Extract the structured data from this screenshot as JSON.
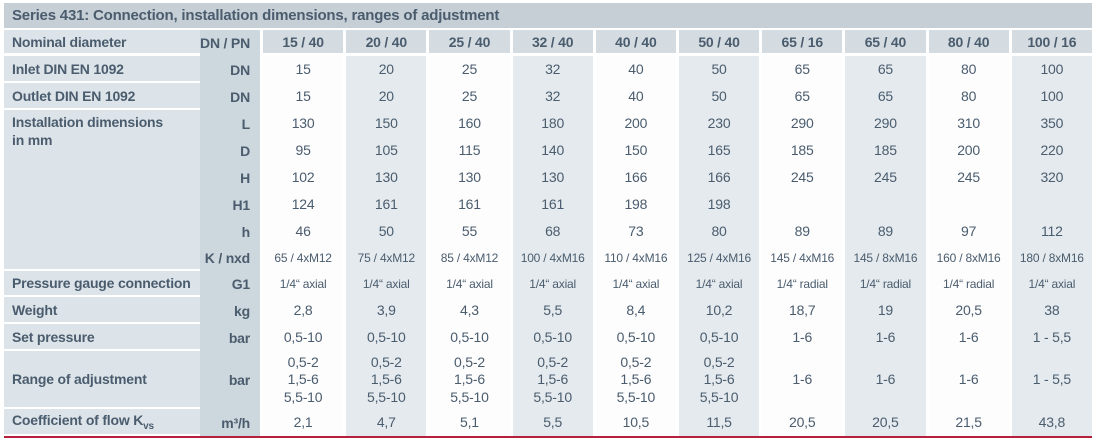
{
  "title": "Series 431: Connection, installation dimensions, ranges of adjustment",
  "accent_colors": {
    "title_bar_bg": "#c6cfd6",
    "label_column_bg": "#dce4ea",
    "unit_column_bg": "#cdd7de",
    "header_cell_bg": "#d4dce2",
    "stripe_bg": "#e4eaee",
    "text": "#4a5c6d",
    "bottom_rule": "#b5203c"
  },
  "table": {
    "corner_label": "Nominal diameter",
    "corner_unit": "DN / PN",
    "columns": [
      "15 / 40",
      "20 / 40",
      "25 / 40",
      "32 / 40",
      "40 / 40",
      "50 / 40",
      "65 / 16",
      "65 / 40",
      "80 / 40",
      "100 / 16"
    ],
    "rows": [
      {
        "label": "Inlet DIN EN 1092",
        "unit": "DN",
        "values": [
          "15",
          "20",
          "25",
          "32",
          "40",
          "50",
          "65",
          "65",
          "80",
          "100"
        ]
      },
      {
        "label": "Outlet DIN EN 1092",
        "unit": "DN",
        "values": [
          "15",
          "20",
          "25",
          "32",
          "40",
          "50",
          "65",
          "65",
          "80",
          "100"
        ]
      },
      {
        "label": "Installation dimensions\nin mm",
        "label_rowspan": 6,
        "unit": "L",
        "values": [
          "130",
          "150",
          "160",
          "180",
          "200",
          "230",
          "290",
          "290",
          "310",
          "350"
        ]
      },
      {
        "unit": "D",
        "values": [
          "95",
          "105",
          "115",
          "140",
          "150",
          "165",
          "185",
          "185",
          "200",
          "220"
        ]
      },
      {
        "unit": "H",
        "values": [
          "102",
          "130",
          "130",
          "130",
          "166",
          "166",
          "245",
          "245",
          "245",
          "320"
        ]
      },
      {
        "unit": "H1",
        "values": [
          "124",
          "161",
          "161",
          "161",
          "198",
          "198",
          "",
          "",
          "",
          ""
        ]
      },
      {
        "unit": "h",
        "values": [
          "46",
          "50",
          "55",
          "68",
          "73",
          "80",
          "89",
          "89",
          "97",
          "112"
        ]
      },
      {
        "unit": "K / nxd",
        "small": true,
        "row_class": "row-k",
        "values": [
          "65 / 4xM12",
          "75 / 4xM12",
          "85 / 4xM12",
          "100 / 4xM16",
          "110 / 4xM16",
          "125 / 4xM16",
          "145 / 4xM16",
          "145 / 8xM16",
          "160 / 8xM16",
          "180 / 8xM16"
        ]
      },
      {
        "label": "Pressure gauge connection",
        "unit": "G1",
        "small": true,
        "row_class": "row-g1",
        "values": [
          "1/4“ axial",
          "1/4“ axial",
          "1/4“ axial",
          "1/4“ axial",
          "1/4“ axial",
          "1/4“ axial",
          "1/4“ radial",
          "1/4“ radial",
          "1/4“ radial",
          "1/4“ axial"
        ]
      },
      {
        "label": "Weight",
        "unit": "kg",
        "values": [
          "2,8",
          "3,9",
          "4,3",
          "5,5",
          "8,4",
          "10,2",
          "18,7",
          "19",
          "20,5",
          "38"
        ]
      },
      {
        "label": "Set pressure",
        "unit": "bar",
        "values": [
          "0,5-10",
          "0,5-10",
          "0,5-10",
          "0,5-10",
          "0,5-10",
          "0,5-10",
          "1-6",
          "1-6",
          "1-6",
          "1 - 5,5"
        ]
      },
      {
        "label": "Range of adjustment",
        "unit": "bar",
        "tall": true,
        "values": [
          "0,5-2\n1,5-6\n5,5-10",
          "0,5-2\n1,5-6\n5,5-10",
          "0,5-2\n1,5-6\n5,5-10",
          "0,5-2\n1,5-6\n5,5-10",
          "0,5-2\n1,5-6\n5,5-10",
          "0,5-2\n1,5-6\n5,5-10",
          "1-6",
          "1-6",
          "1-6",
          "1 - 5,5"
        ]
      },
      {
        "label": "Coefficient of flow K",
        "label_sub": "vs",
        "unit": "m³/h",
        "values": [
          "2,1",
          "4,7",
          "5,1",
          "5,5",
          "10,5",
          "11,5",
          "20,5",
          "20,5",
          "21,5",
          "43,8"
        ]
      }
    ]
  }
}
